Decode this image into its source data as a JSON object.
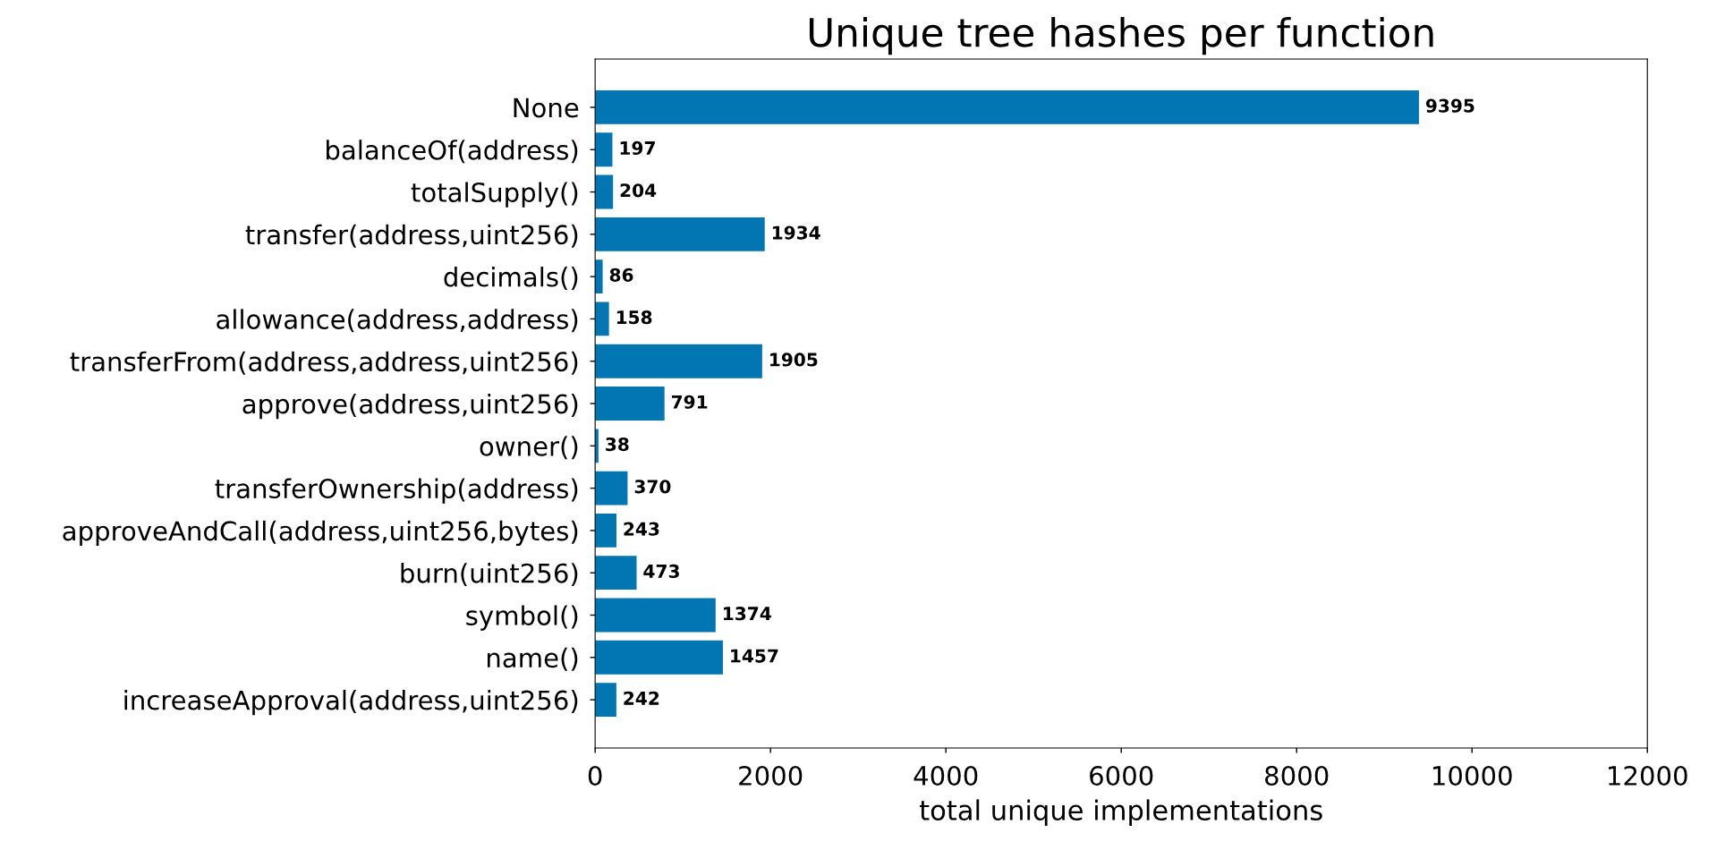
{
  "chart_data": {
    "type": "bar",
    "orientation": "horizontal",
    "title": "Unique tree hashes per function",
    "xlabel": "total unique implementations",
    "categories": [
      "None",
      "balanceOf(address)",
      "totalSupply()",
      "transfer(address,uint256)",
      "decimals()",
      "allowance(address,address)",
      "transferFrom(address,address,uint256)",
      "approve(address,uint256)",
      "owner()",
      "transferOwnership(address)",
      "approveAndCall(address,uint256,bytes)",
      "burn(uint256)",
      "symbol()",
      "name()",
      "increaseApproval(address,uint256)"
    ],
    "values": [
      9395,
      197,
      204,
      1934,
      86,
      158,
      1905,
      791,
      38,
      370,
      243,
      473,
      1374,
      1457,
      242
    ],
    "color": "#0176b2",
    "xlim": [
      0,
      12000
    ],
    "xticks": [
      0,
      2000,
      4000,
      6000,
      8000,
      10000,
      12000
    ],
    "data_labels": true
  }
}
